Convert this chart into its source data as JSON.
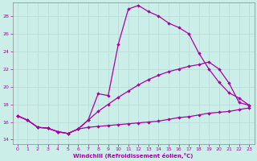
{
  "xlabel": "Windchill (Refroidissement éolien,°C)",
  "background_color": "#cceee8",
  "grid_color": "#aaddcc",
  "line_color": "#aa00aa",
  "xlim": [
    -0.5,
    23.5
  ],
  "ylim": [
    13.5,
    29.5
  ],
  "yticks": [
    14,
    16,
    18,
    20,
    22,
    24,
    26,
    28
  ],
  "xticks": [
    0,
    1,
    2,
    3,
    4,
    5,
    6,
    7,
    8,
    9,
    10,
    11,
    12,
    13,
    14,
    15,
    16,
    17,
    18,
    19,
    20,
    21,
    22,
    23
  ],
  "hours": [
    0,
    1,
    2,
    3,
    4,
    5,
    6,
    7,
    8,
    9,
    10,
    11,
    12,
    13,
    14,
    15,
    16,
    17,
    18,
    19,
    20,
    21,
    22,
    23
  ],
  "line1": [
    16.7,
    16.2,
    15.4,
    15.3,
    14.9,
    14.7,
    15.2,
    16.2,
    19.2,
    19.0,
    24.8,
    28.8,
    29.2,
    28.5,
    28.0,
    27.2,
    26.7,
    26.0,
    23.8,
    22.0,
    20.5,
    19.3,
    18.7,
    17.9
  ],
  "line2": [
    16.7,
    16.2,
    15.4,
    15.3,
    14.9,
    14.7,
    15.2,
    16.2,
    17.2,
    18.0,
    18.8,
    19.5,
    20.2,
    20.8,
    21.3,
    21.7,
    22.0,
    22.3,
    22.5,
    22.8,
    22.0,
    20.4,
    18.2,
    17.9
  ],
  "line3": [
    16.7,
    16.2,
    15.4,
    15.3,
    14.9,
    14.7,
    15.2,
    15.4,
    15.5,
    15.6,
    15.7,
    15.8,
    15.9,
    16.0,
    16.1,
    16.3,
    16.5,
    16.6,
    16.8,
    17.0,
    17.1,
    17.2,
    17.4,
    17.6
  ]
}
